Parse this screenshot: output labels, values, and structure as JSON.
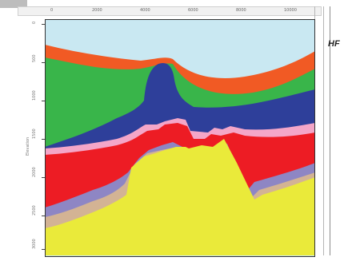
{
  "ruler": {
    "top_ticks": [
      "0",
      "2000",
      "4000",
      "6000",
      "8000",
      "10000"
    ],
    "left_ticks": [
      "0",
      "500",
      "1000",
      "1500",
      "2000",
      "2500",
      "3000"
    ],
    "axis_title": "Elevation"
  },
  "panel": {
    "corner_label": "HF",
    "colors": {
      "sky": "#c9e8f2",
      "orange": "#f15a24",
      "green": "#39b54a",
      "blue": "#2e3f9a",
      "pink": "#f4a6c8",
      "red": "#ed1c24",
      "purple": "#8e86c4",
      "tan": "#d3b394",
      "yellow": "#eaea3a"
    }
  }
}
